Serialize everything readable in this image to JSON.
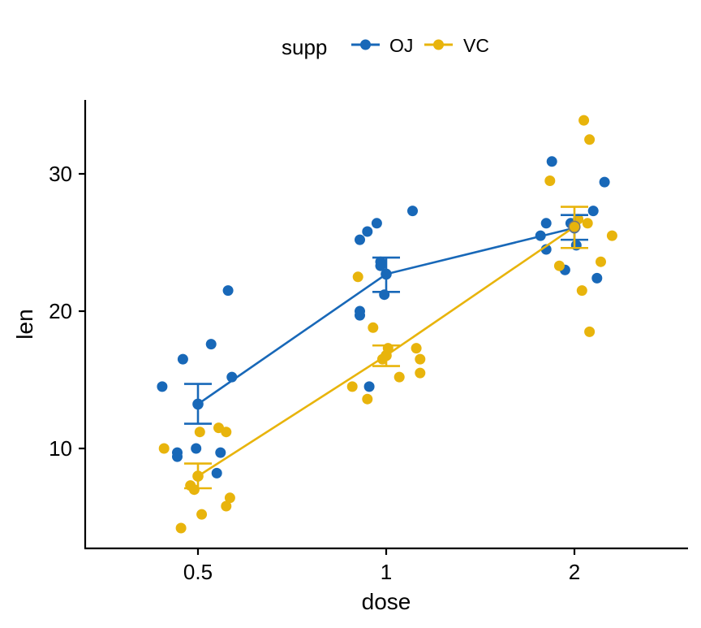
{
  "colors": {
    "OJ": "#1868b8",
    "VC": "#e8b40c",
    "axis": "#000000",
    "background": "#ffffff"
  },
  "chart_data": {
    "type": "line",
    "title": "",
    "xlabel": "dose",
    "ylabel": "len",
    "categories": [
      "0.5",
      "1",
      "2"
    ],
    "ylim": [
      3,
      35
    ],
    "yticks": [
      10,
      20,
      30
    ],
    "grid": false,
    "legend": {
      "title": "supp",
      "position": "top",
      "entries": [
        "OJ",
        "VC"
      ]
    },
    "series": [
      {
        "name": "OJ",
        "means": [
          13.23,
          22.7,
          26.06
        ],
        "error_low": [
          11.8,
          21.4,
          25.2
        ],
        "error_high": [
          14.7,
          23.9,
          27.0
        ],
        "points": [
          {
            "dose": "0.5",
            "jitter": -0.19,
            "len": 14.5
          },
          {
            "dose": "0.5",
            "jitter": -0.11,
            "len": 9.4
          },
          {
            "dose": "0.5",
            "jitter": -0.11,
            "len": 9.7
          },
          {
            "dose": "0.5",
            "jitter": -0.08,
            "len": 16.5
          },
          {
            "dose": "0.5",
            "jitter": -0.01,
            "len": 10.0
          },
          {
            "dose": "0.5",
            "jitter": 0.07,
            "len": 17.6
          },
          {
            "dose": "0.5",
            "jitter": 0.1,
            "len": 8.2
          },
          {
            "dose": "0.5",
            "jitter": 0.12,
            "len": 9.7
          },
          {
            "dose": "0.5",
            "jitter": 0.16,
            "len": 21.5
          },
          {
            "dose": "0.5",
            "jitter": 0.18,
            "len": 15.2
          },
          {
            "dose": "1",
            "jitter": -0.14,
            "len": 25.2
          },
          {
            "dose": "1",
            "jitter": -0.14,
            "len": 19.7
          },
          {
            "dose": "1",
            "jitter": -0.14,
            "len": 20.0
          },
          {
            "dose": "1",
            "jitter": -0.1,
            "len": 25.8
          },
          {
            "dose": "1",
            "jitter": -0.09,
            "len": 14.5
          },
          {
            "dose": "1",
            "jitter": -0.05,
            "len": 26.4
          },
          {
            "dose": "1",
            "jitter": -0.03,
            "len": 23.6
          },
          {
            "dose": "1",
            "jitter": -0.03,
            "len": 23.3
          },
          {
            "dose": "1",
            "jitter": -0.01,
            "len": 21.2
          },
          {
            "dose": "1",
            "jitter": 0.14,
            "len": 27.3
          },
          {
            "dose": "2",
            "jitter": -0.18,
            "len": 25.5
          },
          {
            "dose": "2",
            "jitter": -0.15,
            "len": 26.4
          },
          {
            "dose": "2",
            "jitter": -0.15,
            "len": 24.5
          },
          {
            "dose": "2",
            "jitter": -0.12,
            "len": 30.9
          },
          {
            "dose": "2",
            "jitter": -0.05,
            "len": 23.0
          },
          {
            "dose": "2",
            "jitter": -0.02,
            "len": 26.4
          },
          {
            "dose": "2",
            "jitter": 0.01,
            "len": 24.8
          },
          {
            "dose": "2",
            "jitter": 0.1,
            "len": 27.3
          },
          {
            "dose": "2",
            "jitter": 0.12,
            "len": 22.4
          },
          {
            "dose": "2",
            "jitter": 0.16,
            "len": 29.4
          }
        ]
      },
      {
        "name": "VC",
        "means": [
          7.98,
          16.77,
          26.14
        ],
        "error_low": [
          7.1,
          16.0,
          24.6
        ],
        "error_high": [
          8.9,
          17.5,
          27.6
        ],
        "points": [
          {
            "dose": "0.5",
            "jitter": -0.18,
            "len": 10.0
          },
          {
            "dose": "0.5",
            "jitter": -0.09,
            "len": 4.2
          },
          {
            "dose": "0.5",
            "jitter": -0.04,
            "len": 7.3
          },
          {
            "dose": "0.5",
            "jitter": -0.02,
            "len": 7.0
          },
          {
            "dose": "0.5",
            "jitter": 0.01,
            "len": 11.2
          },
          {
            "dose": "0.5",
            "jitter": 0.02,
            "len": 5.2
          },
          {
            "dose": "0.5",
            "jitter": 0.11,
            "len": 11.5
          },
          {
            "dose": "0.5",
            "jitter": 0.15,
            "len": 11.2
          },
          {
            "dose": "0.5",
            "jitter": 0.15,
            "len": 5.8
          },
          {
            "dose": "0.5",
            "jitter": 0.17,
            "len": 6.4
          },
          {
            "dose": "1",
            "jitter": -0.18,
            "len": 14.5
          },
          {
            "dose": "1",
            "jitter": -0.15,
            "len": 22.5
          },
          {
            "dose": "1",
            "jitter": -0.1,
            "len": 13.6
          },
          {
            "dose": "1",
            "jitter": -0.07,
            "len": 18.8
          },
          {
            "dose": "1",
            "jitter": -0.02,
            "len": 16.5
          },
          {
            "dose": "1",
            "jitter": 0.01,
            "len": 17.3
          },
          {
            "dose": "1",
            "jitter": 0.07,
            "len": 15.2
          },
          {
            "dose": "1",
            "jitter": 0.16,
            "len": 17.3
          },
          {
            "dose": "1",
            "jitter": 0.18,
            "len": 16.5
          },
          {
            "dose": "1",
            "jitter": 0.18,
            "len": 15.5
          },
          {
            "dose": "2",
            "jitter": -0.13,
            "len": 29.5
          },
          {
            "dose": "2",
            "jitter": -0.08,
            "len": 23.3
          },
          {
            "dose": "2",
            "jitter": 0.02,
            "len": 26.7
          },
          {
            "dose": "2",
            "jitter": 0.04,
            "len": 21.5
          },
          {
            "dose": "2",
            "jitter": 0.05,
            "len": 33.9
          },
          {
            "dose": "2",
            "jitter": 0.07,
            "len": 26.4
          },
          {
            "dose": "2",
            "jitter": 0.08,
            "len": 18.5
          },
          {
            "dose": "2",
            "jitter": 0.08,
            "len": 32.5
          },
          {
            "dose": "2",
            "jitter": 0.14,
            "len": 23.6
          },
          {
            "dose": "2",
            "jitter": 0.2,
            "len": 25.5
          }
        ]
      }
    ]
  }
}
